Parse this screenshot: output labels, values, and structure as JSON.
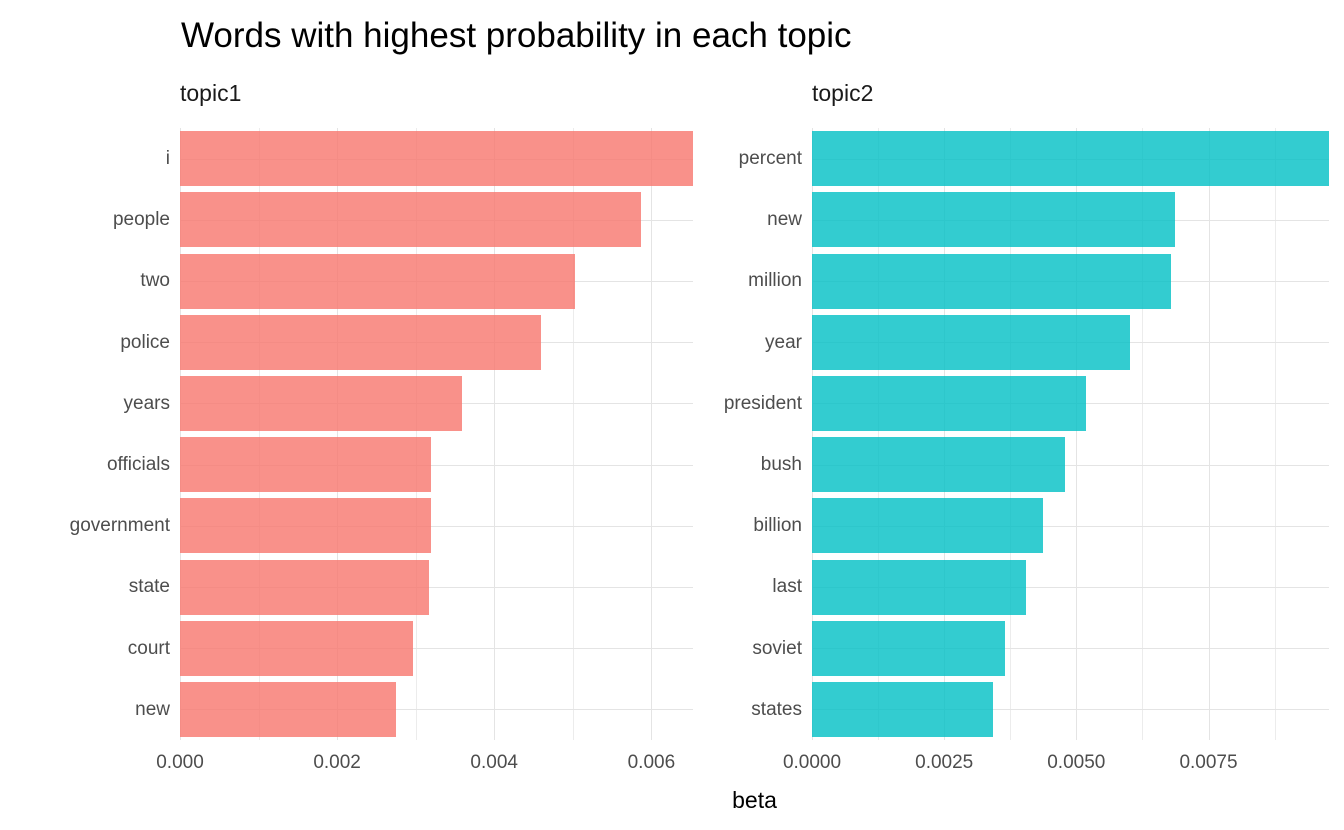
{
  "title": "Words with highest probability in each topic",
  "xlabel": "beta",
  "chart_data": {
    "type": "bar",
    "orientation": "horizontal",
    "grid": true,
    "background": "#FFFFFF",
    "gridline_major_color": "#E4E4E4",
    "gridline_minor_color": "#ECECEC",
    "axis_text_color": "#4D4D4D",
    "title_color": "#000000",
    "strip_text_color": "#1A1A1A",
    "bar_alpha": 0.8,
    "facets": [
      {
        "label": "topic1",
        "bar_color": "#F8766D",
        "bar_color_rgba": "rgba(248,118,109,0.8)",
        "categories": [
          "i",
          "people",
          "two",
          "police",
          "years",
          "officials",
          "government",
          "state",
          "court",
          "new"
        ],
        "values": [
          0.00653,
          0.00587,
          0.00503,
          0.0046,
          0.00359,
          0.00319,
          0.00319,
          0.00317,
          0.00297,
          0.00275
        ],
        "xlim": [
          0,
          0.00653
        ],
        "x_major_ticks": [
          0,
          0.002,
          0.004,
          0.006
        ],
        "x_tick_labels": [
          "0.000",
          "0.002",
          "0.004",
          "0.006"
        ],
        "x_minor_ticks": [
          0.001,
          0.003,
          0.005
        ]
      },
      {
        "label": "topic2",
        "bar_color": "#00BFC4",
        "bar_color_rgba": "rgba(0,191,196,0.8)",
        "categories": [
          "percent",
          "new",
          "million",
          "year",
          "president",
          "bush",
          "billion",
          "last",
          "soviet",
          "states"
        ],
        "values": [
          0.00978,
          0.00687,
          0.0068,
          0.00602,
          0.00518,
          0.00479,
          0.00437,
          0.00404,
          0.00366,
          0.00342
        ],
        "xlim": [
          0,
          0.00978
        ],
        "x_major_ticks": [
          0,
          0.0025,
          0.005,
          0.0075
        ],
        "x_tick_labels": [
          "0.0000",
          "0.0025",
          "0.0050",
          "0.0075"
        ],
        "x_minor_ticks": [
          0.00125,
          0.00375,
          0.00625,
          0.00875
        ]
      }
    ]
  }
}
